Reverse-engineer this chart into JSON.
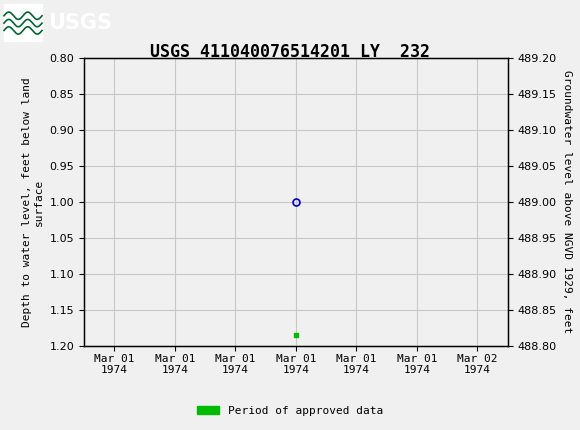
{
  "title": "USGS 411040076514201 LY  232",
  "left_ylabel": "Depth to water level, feet below land\nsurface",
  "right_ylabel": "Groundwater level above NGVD 1929, feet",
  "ylim_left": [
    0.8,
    1.2
  ],
  "ylim_right": [
    488.8,
    489.2
  ],
  "yticks_left": [
    0.8,
    0.85,
    0.9,
    0.95,
    1.0,
    1.05,
    1.1,
    1.15,
    1.2
  ],
  "yticks_right": [
    488.8,
    488.85,
    488.9,
    488.95,
    489.0,
    489.05,
    489.1,
    489.15,
    489.2
  ],
  "data_point_y": 1.0,
  "green_bar_y": 1.185,
  "header_color": "#006633",
  "grid_color": "#c8c8c8",
  "background_color": "#f0f0f0",
  "plot_bg_color": "#f0f0f0",
  "legend_label": "Period of approved data",
  "legend_color": "#00bb00",
  "point_color": "#0000cc",
  "title_fontsize": 12,
  "axis_label_fontsize": 8,
  "tick_fontsize": 8,
  "font_family": "monospace",
  "xtick_labels": [
    "Mar 01\n1974",
    "Mar 01\n1974",
    "Mar 01\n1974",
    "Mar 01\n1974",
    "Mar 01\n1974",
    "Mar 01\n1974",
    "Mar 02\n1974"
  ],
  "xtick_positions": [
    0,
    1,
    2,
    3,
    4,
    5,
    6
  ],
  "data_x_pos": 3,
  "green_x_pos": 3,
  "xlim": [
    -0.5,
    6.5
  ]
}
